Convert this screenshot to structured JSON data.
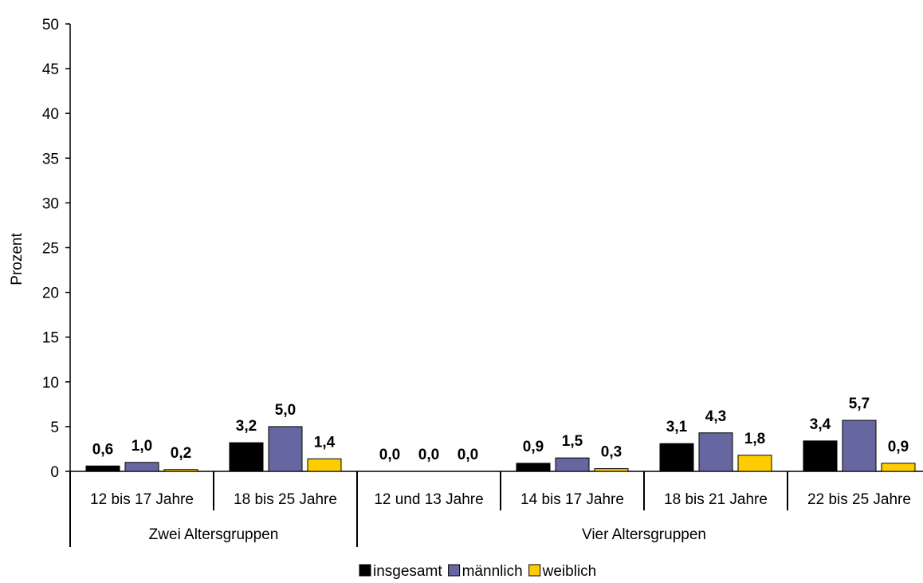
{
  "chart_data": {
    "type": "bar",
    "ylabel": "Prozent",
    "ylim": [
      0,
      50
    ],
    "yticks": [
      "0",
      "5",
      "10",
      "15",
      "20",
      "25",
      "30",
      "35",
      "40",
      "45",
      "50"
    ],
    "categories": [
      "12 bis 17 Jahre",
      "18 bis 25 Jahre",
      "12 und 13 Jahre",
      "14 bis 17 Jahre",
      "18 bis 21 Jahre",
      "22 bis 25 Jahre"
    ],
    "groups": [
      {
        "label": "Zwei Altersgruppen",
        "span": [
          0,
          1
        ]
      },
      {
        "label": "Vier Altersgruppen",
        "span": [
          2,
          5
        ]
      }
    ],
    "series": [
      {
        "name": "insgesamt",
        "color": "#000000",
        "values": [
          0.6,
          3.2,
          0.0,
          0.9,
          3.1,
          3.4
        ],
        "labels": [
          "0,6",
          "3,2",
          "0,0",
          "0,9",
          "3,1",
          "3,4"
        ]
      },
      {
        "name": "männlich",
        "color": "#6666a0",
        "values": [
          1.0,
          5.0,
          0.0,
          1.5,
          4.3,
          5.7
        ],
        "labels": [
          "1,0",
          "5,0",
          "0,0",
          "1,5",
          "4,3",
          "5,7"
        ]
      },
      {
        "name": "weiblich",
        "color": "#ffcc00",
        "values": [
          0.2,
          1.4,
          0.0,
          0.3,
          1.8,
          0.9
        ],
        "labels": [
          "0,2",
          "1,4",
          "0,0",
          "0,3",
          "1,8",
          "0,9"
        ]
      }
    ],
    "grid": false,
    "legend_position": "bottom"
  }
}
